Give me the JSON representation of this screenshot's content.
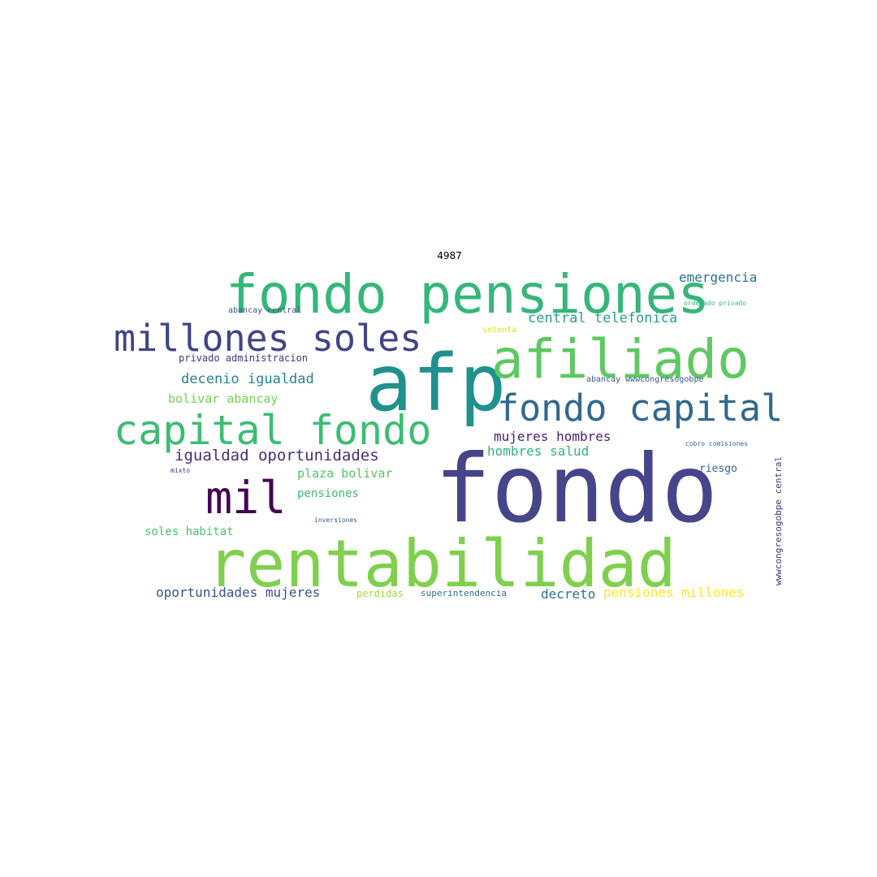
{
  "title": "4987",
  "words": [
    {
      "text": "fondo",
      "color": "#46458a"
    },
    {
      "text": "rentabilidad",
      "color": "#7fd04e"
    },
    {
      "text": "afp",
      "color": "#21918c"
    },
    {
      "text": "fondo pensiones",
      "color": "#35b779"
    },
    {
      "text": "afiliado",
      "color": "#5ec962"
    },
    {
      "text": "millones soles",
      "color": "#414487"
    },
    {
      "text": "capital fondo",
      "color": "#3dbc74"
    },
    {
      "text": "fondo capital",
      "color": "#31688e"
    },
    {
      "text": "mil",
      "color": "#440154"
    },
    {
      "text": "igualdad oportunidades",
      "color": "#472d7b"
    },
    {
      "text": "decenio igualdad",
      "color": "#26828e"
    },
    {
      "text": "central telefonica",
      "color": "#2a9d8f"
    },
    {
      "text": "emergencia",
      "color": "#2c728e"
    },
    {
      "text": "mujeres hombres",
      "color": "#482173"
    },
    {
      "text": "hombres salud",
      "color": "#2fb47c"
    },
    {
      "text": "bolivar abancay",
      "color": "#75d054"
    },
    {
      "text": "plaza bolivar",
      "color": "#52c569"
    },
    {
      "text": "pensiones",
      "color": "#3fbc73"
    },
    {
      "text": "soles habitat",
      "color": "#4ac16d"
    },
    {
      "text": "oportunidades mujeres",
      "color": "#3b528b"
    },
    {
      "text": "decreto",
      "color": "#2c728e"
    },
    {
      "text": "pensiones millones",
      "color": "#fde725"
    },
    {
      "text": "riesgo",
      "color": "#31688e"
    },
    {
      "text": "privado administracion",
      "color": "#46337f"
    },
    {
      "text": "abancay central",
      "color": "#3b528b"
    },
    {
      "text": "setenta",
      "color": "#dde318"
    },
    {
      "text": "ordenado privado",
      "color": "#35b779"
    },
    {
      "text": "abancay wwwcongresogobpe",
      "color": "#3b528b"
    },
    {
      "text": "cobro comisiones",
      "color": "#31688e"
    },
    {
      "text": "wwwcongresogobpe central",
      "color": "#46337f"
    },
    {
      "text": "mixto",
      "color": "#472d7b"
    },
    {
      "text": "inversiones",
      "color": "#3b528b"
    },
    {
      "text": "perdidas",
      "color": "#a0da39"
    },
    {
      "text": "superintendencia",
      "color": "#2c728e"
    }
  ]
}
